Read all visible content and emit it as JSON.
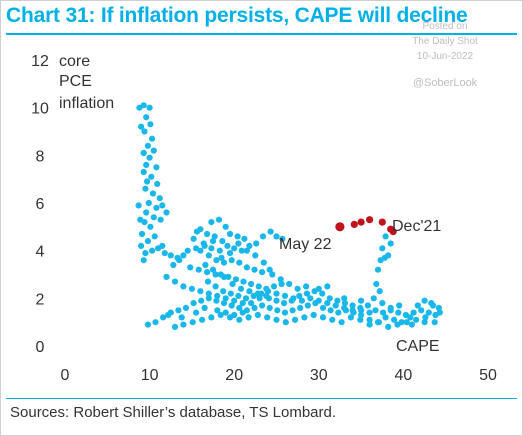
{
  "title": "Chart 31: If inflation persists, CAPE will decline",
  "watermark": {
    "posted": "Posted on",
    "publication": "The Daily Shot",
    "date": "10-Jun-2022",
    "handle": "@SoberLook"
  },
  "source": "Sources: Robert Shiller’s database, TS Lombard.",
  "colors": {
    "brand": "#00b0e6",
    "scatter": "#1ab7ea",
    "highlight": "#c0141c",
    "text": "#333333"
  },
  "chart_data": {
    "type": "scatter",
    "title": "Chart 31: If inflation persists, CAPE will decline",
    "xlabel": "CAPE",
    "ylabel_lines": [
      "core",
      "PCE",
      "inflation"
    ],
    "xlim": [
      0,
      50
    ],
    "ylim": [
      0,
      12
    ],
    "x_ticks": [
      "0",
      "10",
      "20",
      "30",
      "40",
      "50"
    ],
    "y_ticks": [
      "0",
      "2",
      "4",
      "6",
      "8",
      "10",
      "12"
    ],
    "grid": false,
    "series": [
      {
        "points": [
          [
            8.8,
            10.0
          ],
          [
            9.3,
            10.1
          ],
          [
            10.0,
            10.0
          ],
          [
            9.6,
            9.6
          ],
          [
            10.1,
            9.3
          ],
          [
            9.0,
            9.2
          ],
          [
            9.4,
            9.0
          ],
          [
            10.3,
            8.7
          ],
          [
            9.8,
            8.4
          ],
          [
            10.5,
            8.2
          ],
          [
            9.3,
            8.1
          ],
          [
            10.0,
            7.9
          ],
          [
            9.6,
            7.6
          ],
          [
            10.8,
            7.5
          ],
          [
            9.3,
            7.3
          ],
          [
            10.2,
            7.1
          ],
          [
            9.7,
            6.9
          ],
          [
            10.9,
            6.8
          ],
          [
            9.5,
            6.6
          ],
          [
            10.4,
            6.4
          ],
          [
            11.2,
            6.2
          ],
          [
            9.9,
            6.0
          ],
          [
            10.8,
            5.8
          ],
          [
            11.5,
            5.9
          ],
          [
            9.6,
            5.6
          ],
          [
            10.5,
            5.4
          ],
          [
            11.3,
            5.3
          ],
          [
            12.0,
            5.6
          ],
          [
            9.4,
            5.2
          ],
          [
            10.1,
            5.0
          ],
          [
            8.7,
            5.9
          ],
          [
            8.9,
            5.3
          ],
          [
            9.1,
            4.7
          ],
          [
            9.0,
            4.2
          ],
          [
            9.5,
            3.9
          ],
          [
            10.3,
            4.0
          ],
          [
            11.0,
            4.1
          ],
          [
            11.8,
            3.9
          ],
          [
            12.5,
            3.8
          ],
          [
            13.3,
            3.7
          ],
          [
            14.0,
            3.8
          ],
          [
            9.8,
            4.4
          ],
          [
            10.6,
            4.6
          ],
          [
            11.5,
            4.2
          ],
          [
            9.3,
            3.6
          ],
          [
            16.0,
            4.9
          ],
          [
            17.3,
            5.2
          ],
          [
            18.2,
            5.3
          ],
          [
            19.0,
            5.0
          ],
          [
            16.8,
            4.7
          ],
          [
            15.6,
            4.8
          ],
          [
            17.7,
            4.6
          ],
          [
            18.6,
            4.4
          ],
          [
            19.5,
            4.7
          ],
          [
            20.4,
            4.6
          ],
          [
            21.2,
            4.5
          ],
          [
            15.2,
            4.5
          ],
          [
            16.4,
            4.3
          ],
          [
            17.3,
            4.1
          ],
          [
            18.3,
            4.0
          ],
          [
            19.2,
            4.2
          ],
          [
            20.0,
            4.1
          ],
          [
            20.9,
            4.0
          ],
          [
            21.8,
            4.2
          ],
          [
            22.6,
            4.3
          ],
          [
            23.4,
            4.6
          ],
          [
            24.3,
            4.8
          ],
          [
            25.0,
            4.6
          ],
          [
            25.7,
            4.5
          ],
          [
            16.0,
            4.0
          ],
          [
            17.0,
            3.8
          ],
          [
            17.9,
            3.6
          ],
          [
            18.8,
            3.5
          ],
          [
            19.7,
            3.6
          ],
          [
            20.6,
            3.5
          ],
          [
            21.5,
            3.3
          ],
          [
            22.4,
            3.2
          ],
          [
            23.3,
            3.1
          ],
          [
            24.2,
            3.2
          ],
          [
            16.6,
            3.4
          ],
          [
            17.5,
            3.2
          ],
          [
            18.4,
            3.0
          ],
          [
            19.3,
            2.9
          ],
          [
            20.2,
            2.8
          ],
          [
            21.1,
            2.7
          ],
          [
            22.0,
            2.6
          ],
          [
            22.9,
            2.5
          ],
          [
            23.8,
            2.4
          ],
          [
            24.7,
            2.5
          ],
          [
            25.6,
            2.6
          ],
          [
            16.9,
            2.7
          ],
          [
            17.8,
            2.5
          ],
          [
            18.7,
            2.3
          ],
          [
            19.6,
            2.2
          ],
          [
            20.5,
            2.1
          ],
          [
            21.4,
            2.0
          ],
          [
            22.3,
            2.1
          ],
          [
            23.2,
            2.2
          ],
          [
            24.1,
            2.0
          ],
          [
            25.0,
            1.9
          ],
          [
            25.9,
            1.8
          ],
          [
            26.8,
            1.9
          ],
          [
            27.7,
            2.1
          ],
          [
            28.6,
            2.2
          ],
          [
            29.5,
            2.3
          ],
          [
            30.4,
            2.2
          ],
          [
            31.3,
            2.0
          ],
          [
            32.2,
            1.9
          ],
          [
            33.1,
            1.8
          ],
          [
            34.0,
            1.7
          ],
          [
            34.9,
            1.6
          ],
          [
            35.8,
            1.7
          ],
          [
            36.7,
            1.5
          ],
          [
            37.6,
            1.4
          ],
          [
            38.5,
            1.5
          ],
          [
            39.4,
            1.4
          ],
          [
            40.3,
            1.3
          ],
          [
            41.2,
            1.4
          ],
          [
            42.1,
            1.5
          ],
          [
            43.0,
            1.4
          ],
          [
            43.8,
            1.3
          ],
          [
            44.2,
            1.6
          ],
          [
            43.3,
            1.8
          ],
          [
            42.5,
            1.9
          ],
          [
            41.7,
            1.7
          ],
          [
            40.8,
            1.2
          ],
          [
            39.8,
            1.0
          ],
          [
            38.9,
            1.1
          ],
          [
            37.9,
            1.2
          ],
          [
            37.0,
            1.0
          ],
          [
            36.0,
            1.1
          ],
          [
            35.0,
            1.3
          ],
          [
            34.1,
            1.4
          ],
          [
            33.2,
            1.5
          ],
          [
            32.3,
            1.4
          ],
          [
            31.4,
            1.5
          ],
          [
            30.5,
            1.6
          ],
          [
            29.6,
            1.8
          ],
          [
            28.7,
            1.7
          ],
          [
            27.8,
            1.6
          ],
          [
            26.9,
            1.5
          ],
          [
            26.0,
            1.4
          ],
          [
            25.1,
            1.5
          ],
          [
            24.2,
            1.6
          ],
          [
            23.3,
            1.7
          ],
          [
            22.4,
            1.6
          ],
          [
            21.5,
            1.5
          ],
          [
            20.6,
            1.6
          ],
          [
            19.7,
            1.7
          ],
          [
            18.8,
            1.8
          ],
          [
            17.9,
            1.9
          ],
          [
            17.0,
            2.0
          ],
          [
            16.1,
            1.9
          ],
          [
            15.2,
            1.8
          ],
          [
            14.3,
            1.6
          ],
          [
            13.4,
            1.5
          ],
          [
            12.5,
            1.4
          ],
          [
            11.6,
            1.2
          ],
          [
            10.7,
            1.0
          ],
          [
            9.8,
            0.9
          ],
          [
            13.0,
            0.8
          ],
          [
            14.0,
            0.9
          ],
          [
            15.1,
            1.0
          ],
          [
            16.2,
            1.1
          ],
          [
            17.3,
            1.2
          ],
          [
            18.4,
            1.3
          ],
          [
            19.5,
            1.2
          ],
          [
            20.6,
            1.1
          ],
          [
            21.7,
            1.2
          ],
          [
            22.8,
            1.3
          ],
          [
            23.9,
            1.2
          ],
          [
            25.0,
            1.1
          ],
          [
            26.1,
            1.0
          ],
          [
            27.2,
            1.1
          ],
          [
            28.3,
            1.2
          ],
          [
            29.4,
            1.3
          ],
          [
            30.5,
            1.2
          ],
          [
            31.6,
            1.1
          ],
          [
            32.7,
            1.0
          ],
          [
            33.8,
            1.2
          ],
          [
            34.9,
            1.1
          ],
          [
            36.0,
            0.9
          ],
          [
            37.1,
            1.0
          ],
          [
            38.2,
            0.8
          ],
          [
            39.3,
            0.9
          ],
          [
            40.4,
            1.0
          ],
          [
            41.5,
            1.1
          ],
          [
            42.6,
            1.2
          ],
          [
            43.7,
            1.0
          ],
          [
            44.3,
            1.4
          ],
          [
            12.2,
            1.3
          ],
          [
            13.8,
            1.2
          ],
          [
            15.5,
            1.4
          ],
          [
            16.5,
            1.6
          ],
          [
            18.0,
            1.5
          ],
          [
            19.0,
            1.4
          ],
          [
            20.0,
            1.3
          ],
          [
            21.0,
            1.4
          ],
          [
            22.0,
            1.8
          ],
          [
            23.0,
            2.0
          ],
          [
            24.0,
            2.3
          ],
          [
            25.0,
            2.2
          ],
          [
            26.0,
            2.1
          ],
          [
            27.0,
            2.0
          ],
          [
            28.0,
            1.9
          ],
          [
            29.0,
            2.0
          ],
          [
            30.0,
            1.9
          ],
          [
            31.0,
            1.8
          ],
          [
            32.0,
            1.7
          ],
          [
            33.0,
            1.6
          ],
          [
            34.0,
            1.5
          ],
          [
            35.0,
            1.5
          ],
          [
            36.0,
            1.4
          ],
          [
            27.5,
            2.4
          ],
          [
            28.5,
            2.5
          ],
          [
            26.5,
            2.6
          ],
          [
            25.5,
            2.8
          ],
          [
            24.5,
            3.0
          ],
          [
            23.5,
            3.5
          ],
          [
            22.5,
            3.8
          ],
          [
            21.5,
            4.0
          ],
          [
            20.5,
            4.3
          ],
          [
            19.5,
            3.9
          ],
          [
            18.5,
            3.7
          ],
          [
            17.5,
            4.4
          ],
          [
            16.5,
            4.2
          ],
          [
            15.5,
            4.1
          ],
          [
            14.5,
            4.0
          ],
          [
            13.5,
            3.6
          ],
          [
            12.8,
            3.4
          ],
          [
            14.8,
            3.3
          ],
          [
            15.8,
            3.2
          ],
          [
            16.8,
            3.1
          ],
          [
            17.8,
            3.0
          ],
          [
            18.8,
            2.9
          ],
          [
            19.8,
            2.6
          ],
          [
            20.8,
            2.4
          ],
          [
            21.8,
            2.3
          ],
          [
            22.8,
            2.2
          ],
          [
            23.8,
            2.1
          ],
          [
            14.0,
            2.5
          ],
          [
            15.0,
            2.4
          ],
          [
            16.0,
            2.3
          ],
          [
            17.0,
            2.2
          ],
          [
            18.0,
            2.1
          ],
          [
            19.0,
            2.0
          ],
          [
            20.0,
            1.9
          ],
          [
            21.0,
            1.8
          ],
          [
            13.0,
            2.7
          ],
          [
            12.0,
            2.9
          ],
          [
            30.0,
            2.4
          ],
          [
            31.0,
            2.5
          ],
          [
            33.0,
            2.0
          ],
          [
            35.0,
            1.9
          ],
          [
            36.5,
            2.0
          ],
          [
            37.5,
            1.8
          ],
          [
            38.5,
            1.6
          ],
          [
            36.8,
            2.6
          ],
          [
            37.0,
            3.2
          ],
          [
            37.3,
            3.6
          ],
          [
            37.8,
            3.7
          ],
          [
            38.2,
            3.8
          ],
          [
            37.5,
            4.1
          ],
          [
            38.5,
            4.3
          ],
          [
            37.9,
            4.6
          ],
          [
            37.2,
            2.3
          ],
          [
            39.5,
            1.7
          ],
          [
            42.5,
            1.0
          ],
          [
            43.5,
            1.7
          ],
          [
            41.0,
            0.9
          ]
        ]
      },
      {
        "points": [
          [
            32.5,
            5.0
          ],
          [
            34.2,
            5.1
          ],
          [
            35.0,
            5.2
          ],
          [
            36.0,
            5.3
          ],
          [
            37.5,
            5.2
          ],
          [
            38.5,
            4.9
          ],
          [
            38.8,
            4.8
          ]
        ]
      }
    ],
    "annotations": [
      {
        "text": "May 22"
      },
      {
        "text": "Dec'21"
      }
    ]
  }
}
